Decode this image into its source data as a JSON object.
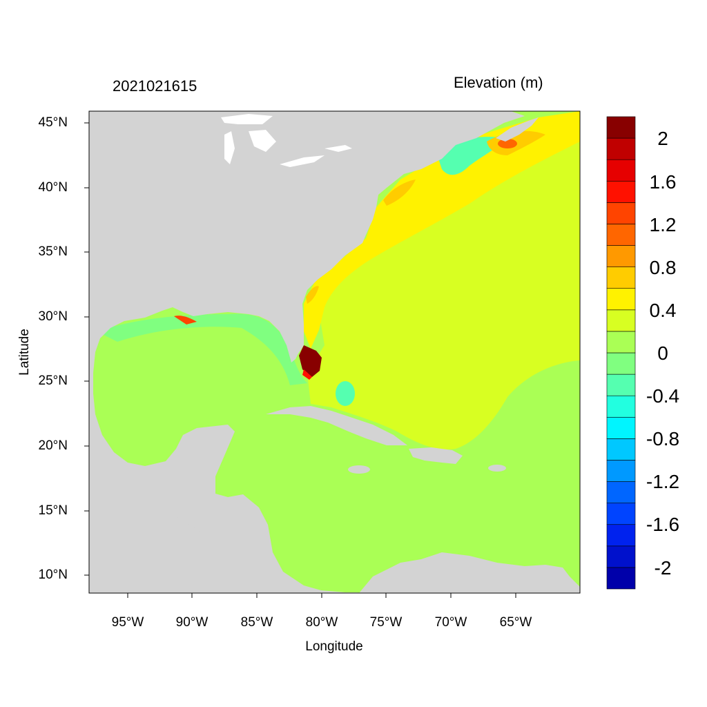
{
  "header": {
    "date": "2021021615",
    "variable": "Elevation (m)"
  },
  "axes": {
    "xlabel": "Longitude",
    "ylabel": "Latitude",
    "xticks": [
      "95°W",
      "90°W",
      "85°W",
      "80°W",
      "75°W",
      "70°W",
      "65°W"
    ],
    "yticks": [
      "45°N",
      "40°N",
      "35°N",
      "30°N",
      "25°N",
      "20°N",
      "15°N",
      "10°N"
    ]
  },
  "colorbar": {
    "colors": [
      "#0000AA",
      "#0011CC",
      "#0022EE",
      "#0044FF",
      "#0066FF",
      "#0099FF",
      "#00C8FF",
      "#00F5FF",
      "#22FFE0",
      "#55FFB0",
      "#80FF80",
      "#AAFF55",
      "#D8FF22",
      "#FFF200",
      "#FFCC00",
      "#FF9900",
      "#FF6600",
      "#FF4400",
      "#FF1100",
      "#E60000",
      "#C00000",
      "#880000"
    ],
    "labels": [
      "2",
      "1.6",
      "1.2",
      "0.8",
      "0.4",
      "0",
      "-0.4",
      "-0.8",
      "-1.2",
      "-1.6",
      "-2"
    ]
  },
  "map": {
    "land_color": "#D3D3D3",
    "lon_range": [
      -98,
      -60
    ],
    "lat_range": [
      8.5,
      46
    ],
    "base_level_color": "#AAFF55",
    "atlantic_level_color": "#D8FF22",
    "coastal_level_color": "#FFF200",
    "storm_surge_color": "#880000"
  }
}
